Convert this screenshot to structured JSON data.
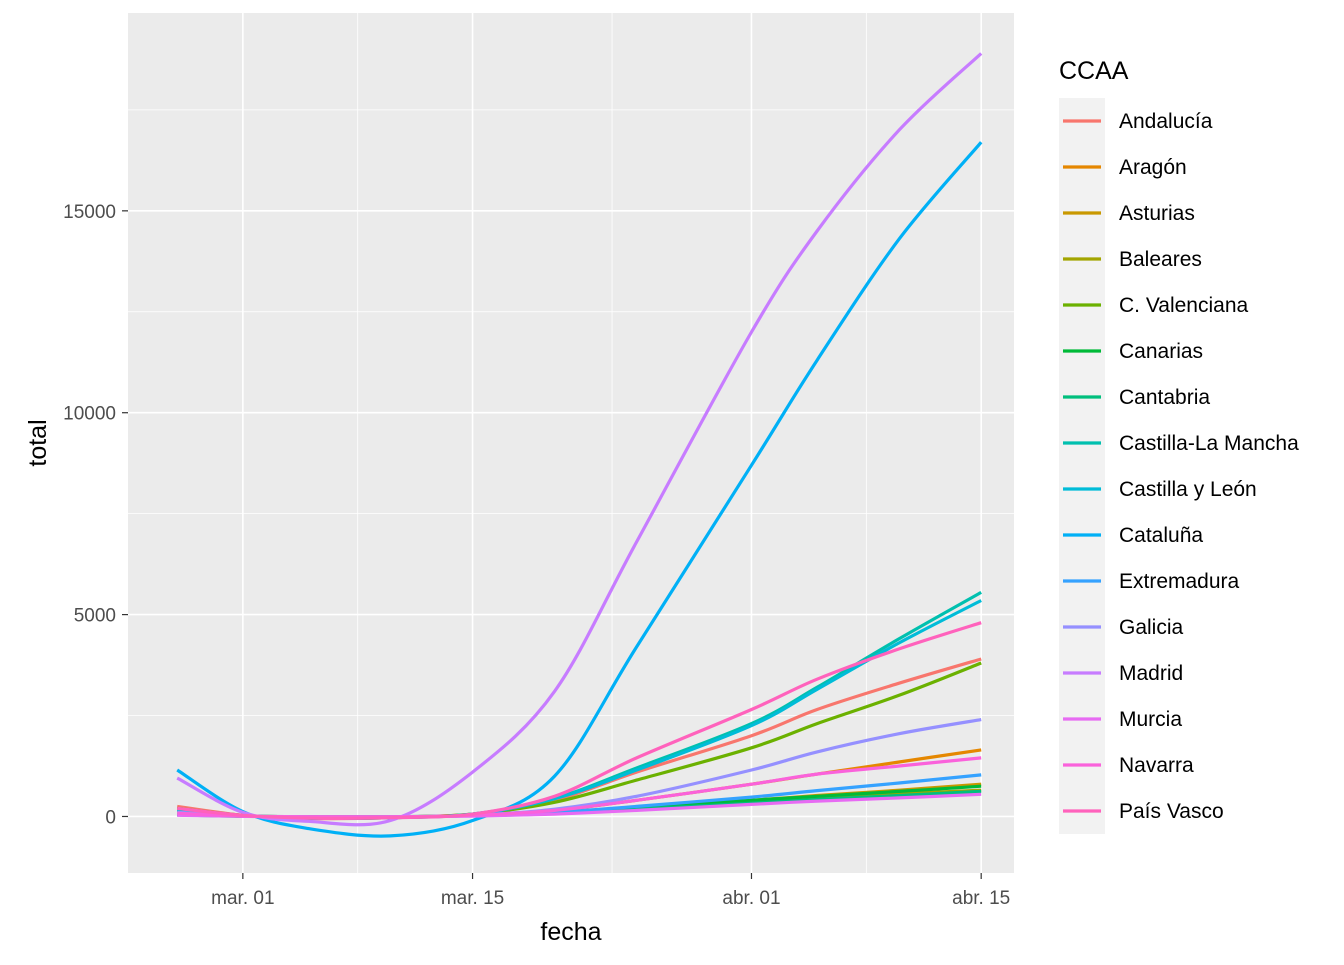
{
  "chart_data": {
    "type": "line",
    "title": "",
    "xlabel": "fecha",
    "ylabel": "total",
    "x_ticks": [
      {
        "date": "2020-03-01",
        "label": "mar. 01"
      },
      {
        "date": "2020-03-15",
        "label": "mar. 15"
      },
      {
        "date": "2020-04-01",
        "label": "abr. 01"
      },
      {
        "date": "2020-04-15",
        "label": "abr. 15"
      }
    ],
    "xlim": [
      "2020-02-23",
      "2020-04-17"
    ],
    "y_ticks": [
      0,
      5000,
      10000,
      15000
    ],
    "ylim": [
      -1400,
      19900
    ],
    "grid": true,
    "legend": {
      "title": "CCAA",
      "position": "right"
    },
    "x": [
      "2020-02-26",
      "2020-03-01",
      "2020-03-05",
      "2020-03-10",
      "2020-03-15",
      "2020-03-20",
      "2020-03-25",
      "2020-04-01",
      "2020-04-05",
      "2020-04-10",
      "2020-04-15"
    ],
    "series": [
      {
        "name": "Andalucía",
        "color": "#F8766D",
        "values": [
          250,
          30,
          -50,
          -30,
          60,
          400,
          1100,
          2000,
          2650,
          3300,
          3900
        ]
      },
      {
        "name": "Aragón",
        "color": "#E58700",
        "values": [
          150,
          20,
          -30,
          -20,
          40,
          150,
          400,
          800,
          1050,
          1350,
          1650
        ]
      },
      {
        "name": "Asturias",
        "color": "#C99800",
        "values": [
          60,
          10,
          -10,
          -10,
          20,
          80,
          220,
          400,
          520,
          650,
          800
        ]
      },
      {
        "name": "Baleares",
        "color": "#A3A500",
        "values": [
          50,
          10,
          -10,
          -10,
          20,
          80,
          200,
          350,
          450,
          560,
          650
        ]
      },
      {
        "name": "C. Valenciana",
        "color": "#6BB100",
        "values": [
          200,
          30,
          -40,
          -30,
          60,
          350,
          900,
          1700,
          2300,
          3000,
          3800
        ]
      },
      {
        "name": "Canarias",
        "color": "#00BA38",
        "values": [
          60,
          10,
          -10,
          -10,
          20,
          80,
          220,
          400,
          500,
          620,
          750
        ]
      },
      {
        "name": "Cantabria",
        "color": "#00BF7D",
        "values": [
          40,
          5,
          -5,
          -5,
          20,
          70,
          180,
          330,
          420,
          520,
          620
        ]
      },
      {
        "name": "Castilla-La Mancha",
        "color": "#00C0AF",
        "values": [
          150,
          20,
          -40,
          -30,
          60,
          450,
          1200,
          2300,
          3200,
          4400,
          5550
        ]
      },
      {
        "name": "Castilla y León",
        "color": "#00BCD8",
        "values": [
          150,
          20,
          -40,
          -30,
          60,
          440,
          1150,
          2250,
          3150,
          4300,
          5350
        ]
      },
      {
        "name": "Cataluña",
        "color": "#00B0F6",
        "values": [
          1150,
          120,
          -300,
          -480,
          -100,
          1000,
          4200,
          8700,
          11300,
          14300,
          16700
        ]
      },
      {
        "name": "Extremadura",
        "color": "#35A2FF",
        "values": [
          60,
          10,
          -10,
          -10,
          20,
          100,
          250,
          480,
          640,
          830,
          1030
        ]
      },
      {
        "name": "Galicia",
        "color": "#9590FF",
        "values": [
          100,
          10,
          -20,
          -20,
          30,
          180,
          500,
          1150,
          1600,
          2050,
          2400
        ]
      },
      {
        "name": "Madrid",
        "color": "#C77CFF",
        "values": [
          950,
          100,
          -120,
          -100,
          1100,
          3100,
          6800,
          12000,
          14500,
          17000,
          18900
        ]
      },
      {
        "name": "Murcia",
        "color": "#E76BF3",
        "values": [
          30,
          5,
          -5,
          -5,
          10,
          60,
          150,
          300,
          380,
          460,
          550
        ]
      },
      {
        "name": "Navarra",
        "color": "#FA62DB",
        "values": [
          80,
          10,
          -10,
          -10,
          30,
          150,
          400,
          800,
          1050,
          1250,
          1450
        ]
      },
      {
        "name": "País Vasco",
        "color": "#FF62BC",
        "values": [
          200,
          30,
          -40,
          -30,
          60,
          500,
          1450,
          2650,
          3400,
          4150,
          4800
        ]
      }
    ]
  }
}
